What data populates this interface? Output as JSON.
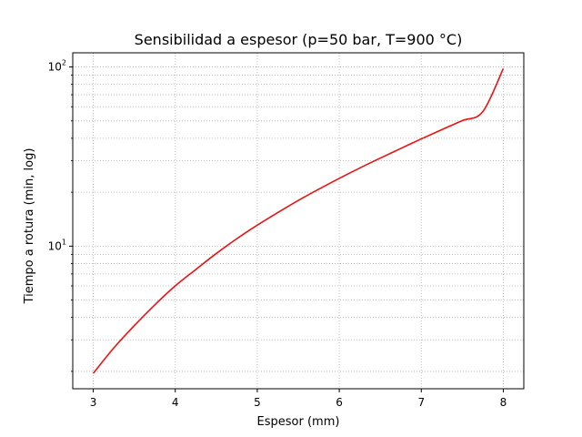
{
  "chart_data": {
    "type": "line",
    "title": "Sensibilidad a espesor (p=50 bar, T=900 °C)",
    "xlabel": "Espesor (mm)",
    "ylabel": "Tiempo a rotura (min, log)",
    "xlim": [
      2.75,
      8.25
    ],
    "ylim": [
      1.6,
      120
    ],
    "y_scale": "log",
    "grid": true,
    "grid_style": "dotted",
    "x_ticks": [
      3,
      4,
      5,
      6,
      7,
      8
    ],
    "x_tick_labels": [
      "3",
      "4",
      "5",
      "6",
      "7",
      "8"
    ],
    "y_major_ticks": [
      10,
      100
    ],
    "y_tick_labels": [
      {
        "base": "10",
        "exp": "1"
      },
      {
        "base": "10",
        "exp": "2"
      }
    ],
    "y_minor_ticks": [
      2,
      3,
      4,
      5,
      6,
      7,
      8,
      9,
      20,
      30,
      40,
      50,
      60,
      70,
      80,
      90
    ],
    "series": [
      {
        "color": "#ee1111",
        "x": [
          3.0,
          3.25,
          3.5,
          3.75,
          4.0,
          4.25,
          4.5,
          4.75,
          5.0,
          5.25,
          5.5,
          5.75,
          6.0,
          6.25,
          6.5,
          6.75,
          7.0,
          7.25,
          7.5,
          7.75,
          8.0
        ],
        "y": [
          1.95,
          2.7,
          3.6,
          4.7,
          6.0,
          7.4,
          9.1,
          11.0,
          13.1,
          15.4,
          18.0,
          20.8,
          23.9,
          27.3,
          31.0,
          35.1,
          39.7,
          44.7,
          50.2,
          56.3,
          98.0
        ]
      }
    ]
  }
}
